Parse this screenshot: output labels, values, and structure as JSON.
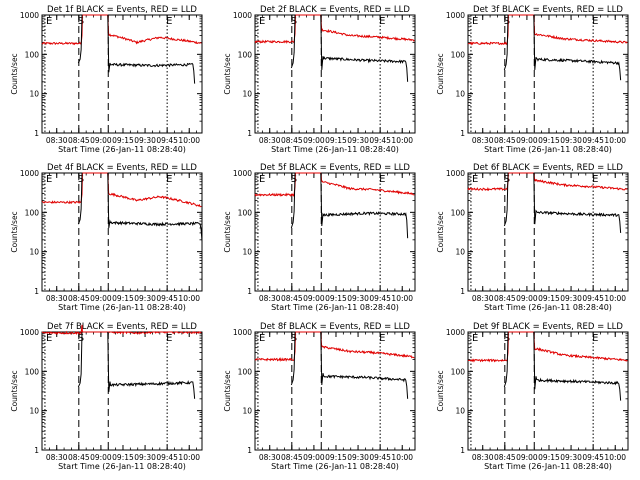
{
  "layout": {
    "rows": 3,
    "cols": 3
  },
  "colors": {
    "events": "#000000",
    "lld": "#e00000",
    "axis": "#000000"
  },
  "shared": {
    "xlabel": "Start Time (26-Jan-11 08:28:40)",
    "ylabel": "Counts/sec",
    "x_ticks": [
      "08:30",
      "08:45",
      "09:00",
      "09:15",
      "09:30",
      "09:45",
      "10:00"
    ],
    "y_ticks": [
      "1",
      "10",
      "100",
      "1000"
    ],
    "xlim": [
      -8.67,
      100
    ],
    "ylim": [
      1,
      1000
    ],
    "y_scale": "log",
    "marker_labels": {
      "start": "S",
      "end": "E"
    },
    "dashed_lines_min": [
      16.33,
      36.33
    ],
    "dotted_lines_min": [
      -6.67,
      76.33
    ],
    "gap_min": [
      18.8,
      35.8
    ]
  },
  "chart_data": [
    {
      "type": "line",
      "title": "Det 1f BLACK = Events, RED = LLD",
      "x_range_min": [
        -8.67,
        95
      ],
      "series": [
        {
          "name": "Events",
          "color": "#000000",
          "start_min": 16.5,
          "end_min": 95,
          "pre": {
            "x": [
              16.0,
              17.2,
              17.9,
              18.5
            ],
            "y": [
              60,
              75,
              130,
              1000
            ]
          },
          "post": {
            "x": [
              36.0,
              36.7,
              37.5
            ],
            "y": [
              1000,
              35,
              60
            ]
          },
          "baseline": 55,
          "mid": 52,
          "end": 55,
          "drop": 18
        },
        {
          "name": "LLD",
          "color": "#e00000",
          "start_min": -8.67,
          "end_min": 100,
          "pre_level": 190,
          "post_start": 320,
          "post_dip": 200,
          "post_bump": 270,
          "post_end": 190
        }
      ]
    },
    {
      "type": "line",
      "title": "Det 2f BLACK = Events, RED = LLD",
      "x_range_min": [
        -8.67,
        95
      ],
      "series": [
        {
          "name": "Events",
          "color": "#000000",
          "start_min": 16.5,
          "end_min": 95,
          "pre": {
            "x": [
              16.0,
              17.2,
              17.9,
              18.5
            ],
            "y": [
              45,
              60,
              110,
              1000
            ]
          },
          "post": {
            "x": [
              36.0,
              36.7,
              37.5
            ],
            "y": [
              1000,
              40,
              90
            ]
          },
          "baseline": 80,
          "mid": 70,
          "end": 65,
          "drop": 20
        },
        {
          "name": "LLD",
          "color": "#e00000",
          "start_min": -8.67,
          "end_min": 100,
          "pre_level": 210,
          "post_start": 420,
          "post_dip": 300,
          "post_bump": 280,
          "post_end": 230
        }
      ]
    },
    {
      "type": "line",
      "title": "Det 3f BLACK = Events, RED = LLD",
      "x_range_min": [
        -8.67,
        95
      ],
      "series": [
        {
          "name": "Events",
          "color": "#000000",
          "start_min": 16.5,
          "end_min": 95,
          "pre": {
            "x": [
              16.0,
              17.2,
              17.9,
              18.5
            ],
            "y": [
              40,
              55,
              100,
              1000
            ]
          },
          "post": {
            "x": [
              36.0,
              36.7,
              37.5
            ],
            "y": [
              1000,
              40,
              85
            ]
          },
          "baseline": 75,
          "mid": 68,
          "end": 60,
          "drop": 22
        },
        {
          "name": "LLD",
          "color": "#e00000",
          "start_min": -8.67,
          "end_min": 100,
          "pre_level": 190,
          "post_start": 330,
          "post_dip": 250,
          "post_bump": 230,
          "post_end": 200
        }
      ]
    },
    {
      "type": "line",
      "title": "Det 4f BLACK = Events, RED = LLD",
      "x_range_min": [
        -8.67,
        100
      ],
      "series": [
        {
          "name": "Events",
          "color": "#000000",
          "start_min": 16.5,
          "end_min": 95,
          "pre": {
            "x": [
              16.0,
              17.2,
              17.9,
              18.5
            ],
            "y": [
              50,
              65,
              120,
              1000
            ]
          },
          "post": {
            "x": [
              36.0,
              36.7,
              37.5
            ],
            "y": [
              1000,
              40,
              60
            ]
          },
          "baseline": 55,
          "mid": 50,
          "end": 52,
          "drop": 18
        },
        {
          "name": "LLD",
          "color": "#e00000",
          "start_min": -8.67,
          "end_min": 100,
          "pre_level": 180,
          "post_start": 300,
          "post_dip": 200,
          "post_bump": 250,
          "post_end": 140
        }
      ]
    },
    {
      "type": "line",
      "title": "Det 5f BLACK = Events, RED = LLD",
      "x_range_min": [
        -8.67,
        95
      ],
      "series": [
        {
          "name": "Events",
          "color": "#000000",
          "start_min": 16.5,
          "end_min": 95,
          "pre": {
            "x": [
              16.0,
              17.2,
              17.9,
              18.5
            ],
            "y": [
              40,
              55,
              105,
              1000
            ]
          },
          "post": {
            "x": [
              36.0,
              36.7,
              37.5
            ],
            "y": [
              1000,
              45,
              90
            ]
          },
          "baseline": 85,
          "mid": 95,
          "end": 90,
          "drop": 22
        },
        {
          "name": "LLD",
          "color": "#e00000",
          "start_min": -8.67,
          "end_min": 100,
          "pre_level": 280,
          "post_start": 600,
          "post_dip": 400,
          "post_bump": 380,
          "post_end": 290
        }
      ]
    },
    {
      "type": "line",
      "title": "Det 6f BLACK = Events, RED = LLD",
      "x_range_min": [
        -8.67,
        95
      ],
      "series": [
        {
          "name": "Events",
          "color": "#000000",
          "start_min": 16.5,
          "end_min": 95,
          "pre": {
            "x": [
              16.0,
              17.2,
              17.9,
              18.5
            ],
            "y": [
              45,
              60,
              115,
              1000
            ]
          },
          "post": {
            "x": [
              36.0,
              36.7,
              37.5
            ],
            "y": [
              1000,
              50,
              110
            ]
          },
          "baseline": 100,
          "mid": 90,
          "end": 85,
          "drop": 30
        },
        {
          "name": "LLD",
          "color": "#e00000",
          "start_min": -8.67,
          "end_min": 100,
          "pre_level": 390,
          "post_start": 650,
          "post_dip": 500,
          "post_bump": 460,
          "post_end": 380
        }
      ]
    },
    {
      "type": "line",
      "title": "Det 7f BLACK = Events, RED = LLD",
      "x_range_min": [
        -8.67,
        95
      ],
      "series": [
        {
          "name": "Events",
          "color": "#000000",
          "start_min": 16.5,
          "end_min": 95,
          "pre": {
            "x": [
              16.0,
              17.2,
              17.9,
              18.5
            ],
            "y": [
              40,
              50,
              85,
              1000
            ]
          },
          "post": {
            "x": [
              36.0,
              36.7,
              37.5
            ],
            "y": [
              1000,
              30,
              55
            ]
          },
          "baseline": 45,
          "mid": 48,
          "end": 52,
          "drop": 20
        },
        {
          "name": "LLD",
          "color": "#e00000",
          "start_min": -8.67,
          "end_min": 100,
          "pre_level": 950,
          "post_start": 1000,
          "post_dip": 950,
          "post_bump": 1000,
          "post_end": 980
        }
      ]
    },
    {
      "type": "line",
      "title": "Det 8f BLACK = Events, RED = LLD",
      "x_range_min": [
        -8.67,
        95
      ],
      "series": [
        {
          "name": "Events",
          "color": "#000000",
          "start_min": 16.5,
          "end_min": 95,
          "pre": {
            "x": [
              16.0,
              17.2,
              17.9,
              18.5
            ],
            "y": [
              45,
              60,
              110,
              1000
            ]
          },
          "post": {
            "x": [
              36.0,
              36.7,
              37.5
            ],
            "y": [
              1000,
              45,
              90
            ]
          },
          "baseline": 75,
          "mid": 70,
          "end": 60,
          "drop": 20
        },
        {
          "name": "LLD",
          "color": "#e00000",
          "start_min": -8.67,
          "end_min": 100,
          "pre_level": 200,
          "post_start": 420,
          "post_dip": 320,
          "post_bump": 300,
          "post_end": 230
        }
      ]
    },
    {
      "type": "line",
      "title": "Det 9f BLACK = Events, RED = LLD",
      "x_range_min": [
        -8.67,
        95
      ],
      "series": [
        {
          "name": "Events",
          "color": "#000000",
          "start_min": 16.5,
          "end_min": 95,
          "pre": {
            "x": [
              16.0,
              17.2,
              17.9,
              18.5
            ],
            "y": [
              40,
              55,
              100,
              1000
            ]
          },
          "post": {
            "x": [
              36.0,
              36.7,
              37.5
            ],
            "y": [
              1000,
              35,
              75
            ]
          },
          "baseline": 60,
          "mid": 55,
          "end": 50,
          "drop": 18
        },
        {
          "name": "LLD",
          "color": "#e00000",
          "start_min": -8.67,
          "end_min": 100,
          "pre_level": 190,
          "post_start": 380,
          "post_dip": 260,
          "post_bump": 230,
          "post_end": 190
        }
      ]
    }
  ]
}
